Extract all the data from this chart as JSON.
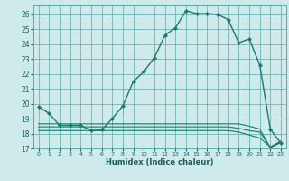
{
  "xlabel": "Humidex (Indice chaleur)",
  "ylabel": "",
  "bg_color": "#ceeaea",
  "grid_color": "#5fa8a8",
  "line_color": "#1a7a6e",
  "x_humidex": [
    0,
    1,
    2,
    3,
    4,
    5,
    6,
    7,
    8,
    9,
    10,
    11,
    12,
    13,
    14,
    15,
    16,
    17,
    18,
    19,
    20,
    21,
    22,
    23
  ],
  "y_main": [
    19.8,
    19.35,
    null,
    null,
    18.55,
    18.2,
    18.25,
    null,
    null,
    null,
    null,
    null,
    24.6,
    25.1,
    26.25,
    26.05,
    26.05,
    null,
    null,
    24.1,
    24.35,
    22.6,
    null,
    null
  ],
  "y_main_all": [
    19.8,
    19.35,
    18.55,
    18.55,
    18.55,
    18.2,
    18.25,
    19.0,
    19.85,
    21.5,
    22.15,
    23.1,
    24.6,
    25.1,
    26.25,
    26.05,
    26.05,
    26.0,
    25.65,
    24.1,
    24.35,
    22.6,
    18.3,
    17.35
  ],
  "y_flat1": [
    18.65,
    18.65,
    18.65,
    18.65,
    18.65,
    18.65,
    18.65,
    18.65,
    18.65,
    18.65,
    18.65,
    18.65,
    18.65,
    18.65,
    18.65,
    18.65,
    18.65,
    18.65,
    18.65,
    18.65,
    18.5,
    18.3,
    17.05,
    17.4
  ],
  "y_flat2": [
    18.45,
    18.45,
    18.45,
    18.45,
    18.45,
    18.45,
    18.45,
    18.45,
    18.45,
    18.45,
    18.45,
    18.45,
    18.45,
    18.45,
    18.45,
    18.45,
    18.45,
    18.45,
    18.45,
    18.35,
    18.2,
    18.1,
    17.05,
    17.45
  ],
  "y_flat3": [
    18.2,
    18.2,
    18.2,
    18.2,
    18.2,
    18.2,
    18.2,
    18.2,
    18.2,
    18.2,
    18.2,
    18.2,
    18.2,
    18.2,
    18.2,
    18.2,
    18.2,
    18.2,
    18.2,
    18.1,
    17.9,
    17.7,
    17.1,
    17.5
  ],
  "ylim": [
    17.0,
    26.6
  ],
  "xlim": [
    -0.5,
    23.5
  ],
  "yticks": [
    17,
    18,
    19,
    20,
    21,
    22,
    23,
    24,
    25,
    26
  ],
  "xticks": [
    0,
    1,
    2,
    3,
    4,
    5,
    6,
    7,
    8,
    9,
    10,
    11,
    12,
    13,
    14,
    15,
    16,
    17,
    18,
    19,
    20,
    21,
    22,
    23
  ]
}
